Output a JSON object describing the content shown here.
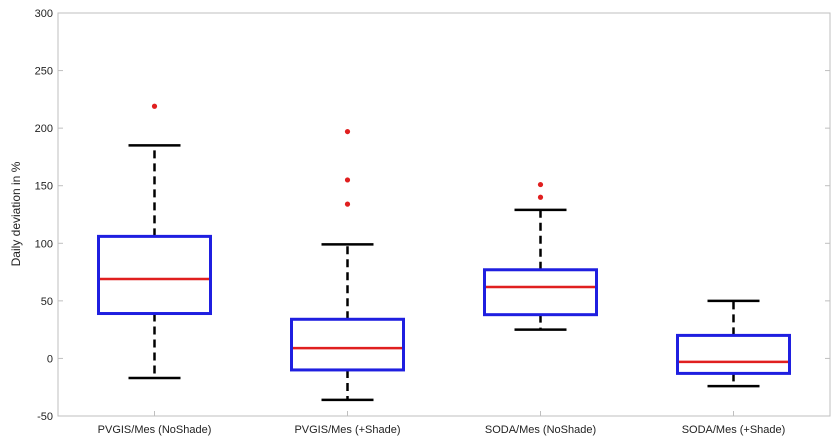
{
  "chart_data": {
    "type": "box",
    "title": "",
    "xlabel": "",
    "ylabel": "Daily deviation in %",
    "ylim": [
      -50,
      300
    ],
    "yticks": [
      -50,
      0,
      50,
      100,
      150,
      200,
      250,
      300
    ],
    "grid": false,
    "categories": [
      "PVGIS/Mes (NoShade)",
      "PVGIS/Mes (+Shade)",
      "SODA/Mes (NoShade)",
      "SODA/Mes (+Shade)"
    ],
    "boxes": [
      {
        "category": "PVGIS/Mes (NoShade)",
        "whisker_low": -17,
        "q1": 39,
        "median": 69,
        "q3": 106,
        "whisker_high": 185,
        "outliers": [
          219
        ]
      },
      {
        "category": "PVGIS/Mes (+Shade)",
        "whisker_low": -36,
        "q1": -10,
        "median": 9,
        "q3": 34,
        "whisker_high": 99,
        "outliers": [
          134,
          155,
          197
        ]
      },
      {
        "category": "SODA/Mes (NoShade)",
        "whisker_low": 25,
        "q1": 38,
        "median": 62,
        "q3": 77,
        "whisker_high": 129,
        "outliers": [
          140,
          151
        ]
      },
      {
        "category": "SODA/Mes (+Shade)",
        "whisker_low": -24,
        "q1": -13,
        "median": -3,
        "q3": 20,
        "whisker_high": 50,
        "outliers": []
      }
    ],
    "colors": {
      "box": "#1f1fe0",
      "median": "#e01f1f",
      "whisker": "#000000",
      "outlier": "#e01f1f"
    }
  }
}
